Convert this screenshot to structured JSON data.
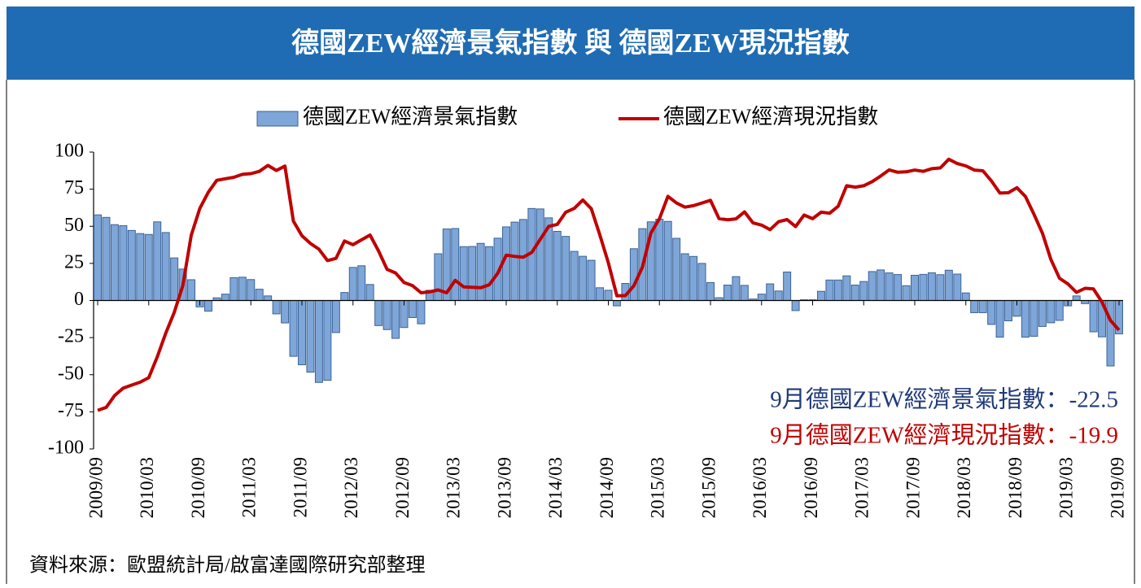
{
  "chart_data": {
    "type": "bar-line",
    "title": "德國ZEW經濟景氣指數 與 德國ZEW現況指數",
    "source": "資料來源：歐盟統計局/啟富達國際研究部整理",
    "annotations": [
      "9月德國ZEW經濟景氣指數：-22.5",
      "9月德國ZEW經濟現況指數：-19.9"
    ],
    "categories": [
      "2009/09",
      null,
      null,
      null,
      null,
      null,
      "2010/03",
      null,
      null,
      null,
      null,
      null,
      "2010/09",
      null,
      null,
      null,
      null,
      null,
      "2011/03",
      null,
      null,
      null,
      null,
      null,
      "2011/09",
      null,
      null,
      null,
      null,
      null,
      "2012/03",
      null,
      null,
      null,
      null,
      null,
      "2012/09",
      null,
      null,
      null,
      null,
      null,
      "2013/03",
      null,
      null,
      null,
      null,
      null,
      "2013/09",
      null,
      null,
      null,
      null,
      null,
      "2014/03",
      null,
      null,
      null,
      null,
      null,
      "2014/09",
      null,
      null,
      null,
      null,
      null,
      "2015/03",
      null,
      null,
      null,
      null,
      null,
      "2015/09",
      null,
      null,
      null,
      null,
      null,
      "2016/03",
      null,
      null,
      null,
      null,
      null,
      "2016/09",
      null,
      null,
      null,
      null,
      null,
      "2017/03",
      null,
      null,
      null,
      null,
      null,
      "2017/09",
      null,
      null,
      null,
      null,
      null,
      "2018/03",
      null,
      null,
      null,
      null,
      null,
      "2018/09",
      null,
      null,
      null,
      null,
      null,
      "2019/03",
      null,
      null,
      null,
      null,
      null,
      "2019/09"
    ],
    "series": [
      {
        "name": "德國ZEW經濟景氣指數",
        "type": "bar",
        "color": "#7ea6d8",
        "edge": "#3c6396",
        "values": [
          57.7,
          56.0,
          51.1,
          50.4,
          47.2,
          45.1,
          44.5,
          53.0,
          45.8,
          28.7,
          21.2,
          14.0,
          -4.3,
          -7.2,
          1.8,
          4.3,
          15.4,
          15.7,
          14.1,
          7.6,
          3.1,
          -9.0,
          -15.1,
          -37.6,
          -43.3,
          -48.3,
          -55.2,
          -53.8,
          -21.6,
          5.4,
          22.3,
          23.4,
          10.8,
          -16.9,
          -19.6,
          -25.5,
          -18.2,
          -11.5,
          -15.7,
          6.9,
          31.5,
          48.2,
          48.5,
          36.3,
          36.4,
          38.5,
          36.3,
          42.0,
          49.6,
          52.8,
          54.6,
          62.0,
          61.7,
          55.7,
          46.6,
          43.2,
          33.1,
          29.8,
          27.1,
          8.6,
          6.9,
          -3.6,
          11.5,
          34.9,
          48.4,
          53.0,
          54.8,
          53.3,
          41.9,
          31.5,
          29.7,
          25.0,
          12.1,
          1.9,
          10.4,
          16.1,
          10.2,
          1.0,
          4.3,
          11.2,
          6.4,
          19.2,
          -6.8,
          0.5,
          0.5,
          6.2,
          13.8,
          13.8,
          16.6,
          10.4,
          12.8,
          19.5,
          20.6,
          18.6,
          17.5,
          10.0,
          17.0,
          17.6,
          18.7,
          17.4,
          20.4,
          17.8,
          5.1,
          -8.2,
          -8.2,
          -16.1,
          -24.7,
          -13.7,
          -10.6,
          -24.7,
          -24.1,
          -17.5,
          -15.0,
          -13.4,
          -3.6,
          3.1,
          -2.1,
          -21.1,
          -24.5,
          -44.1,
          -22.5
        ]
      },
      {
        "name": "德國ZEW經濟現況指數",
        "type": "line",
        "color": "#c00000",
        "values": [
          -74,
          -72,
          -64,
          -59,
          -57,
          -55,
          -52,
          -38,
          -22,
          -8,
          10,
          44,
          62,
          73,
          81,
          82,
          83,
          85,
          85.5,
          87,
          91,
          87.6,
          90.6,
          53.5,
          43.6,
          38.4,
          34.6,
          26.9,
          28.4,
          40.1,
          37.6,
          40.9,
          44.1,
          33.4,
          21.0,
          18.6,
          12.1,
          10.0,
          5.2,
          5.8,
          7.1,
          5.2,
          13.6,
          9.2,
          8.9,
          8.6,
          10.6,
          18.3,
          30.6,
          29.7,
          29.2,
          32.4,
          41.2,
          50.0,
          51.3,
          59.5,
          62.1,
          67.7,
          61.8,
          44.3,
          25.4,
          3.2,
          3.3,
          10.0,
          22.4,
          45.5,
          55.1,
          70.2,
          65.7,
          62.9,
          63.9,
          65.7,
          67.5,
          55.2,
          54.4,
          55.0,
          59.7,
          52.3,
          50.8,
          47.7,
          53.1,
          54.5,
          49.8,
          57.6,
          55.1,
          59.5,
          58.8,
          63.5,
          77.3,
          76.4,
          77.3,
          80.1,
          83.9,
          88.0,
          86.4,
          86.7,
          87.9,
          87.0,
          88.8,
          89.3,
          95.2,
          92.3,
          90.7,
          87.9,
          87.4,
          80.6,
          72.4,
          72.6,
          76.0,
          70.1,
          58.2,
          45.3,
          27.6,
          15.0,
          11.1,
          5.5,
          8.2,
          7.8,
          -1.1,
          -13.5,
          -19.9
        ]
      }
    ],
    "ylim": [
      -100,
      100
    ],
    "yticks": [
      100,
      75,
      50,
      25,
      0,
      -25,
      -50,
      -75,
      -100
    ],
    "grid": false,
    "header_color": "#1f6cb4",
    "annotation_colors": [
      "#1f3a78",
      "#c00000"
    ]
  }
}
